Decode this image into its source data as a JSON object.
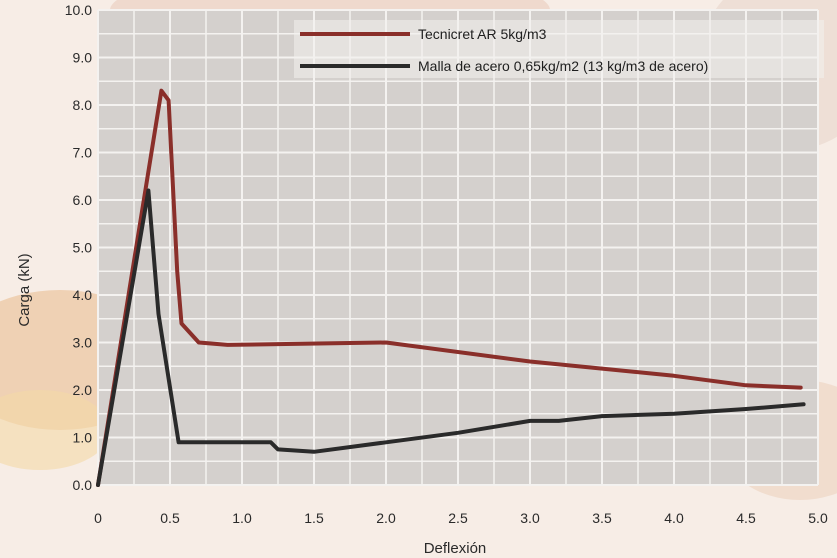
{
  "chart_data": {
    "type": "line",
    "xlabel": "Deflexión",
    "ylabel": "Carga (kN)",
    "xlim": [
      0,
      5.0
    ],
    "ylim": [
      0,
      10.0
    ],
    "x_ticks": [
      "0",
      "0.5",
      "1.0",
      "1.5",
      "2.0",
      "2.5",
      "3.0",
      "3.5",
      "4.0",
      "4.5",
      "5.0"
    ],
    "y_ticks": [
      "0.0",
      "1.0",
      "2.0",
      "3.0",
      "4.0",
      "5.0",
      "6.0",
      "7.0",
      "8.0",
      "9.0",
      "10.0"
    ],
    "grid": true,
    "legend_position": "top",
    "series": [
      {
        "name": "Tecnicret AR  5kg/m3",
        "color": "#8a2f2a",
        "points": [
          [
            0.0,
            0.0
          ],
          [
            0.44,
            8.3
          ],
          [
            0.49,
            8.1
          ],
          [
            0.55,
            4.5
          ],
          [
            0.58,
            3.4
          ],
          [
            0.7,
            3.0
          ],
          [
            0.9,
            2.95
          ],
          [
            2.0,
            3.0
          ],
          [
            3.0,
            2.6
          ],
          [
            4.0,
            2.3
          ],
          [
            4.5,
            2.1
          ],
          [
            4.88,
            2.05
          ]
        ]
      },
      {
        "name": "Malla de acero 0,65kg/m2 (13 kg/m3 de acero)",
        "color": "#2a2a2a",
        "points": [
          [
            0.0,
            0.0
          ],
          [
            0.35,
            6.2
          ],
          [
            0.42,
            3.6
          ],
          [
            0.56,
            0.9
          ],
          [
            0.7,
            0.9
          ],
          [
            1.2,
            0.9
          ],
          [
            1.25,
            0.75
          ],
          [
            1.5,
            0.7
          ],
          [
            2.0,
            0.9
          ],
          [
            2.5,
            1.1
          ],
          [
            3.0,
            1.35
          ],
          [
            3.2,
            1.35
          ],
          [
            3.5,
            1.45
          ],
          [
            4.0,
            1.5
          ],
          [
            4.5,
            1.6
          ],
          [
            4.9,
            1.7
          ]
        ]
      }
    ]
  }
}
